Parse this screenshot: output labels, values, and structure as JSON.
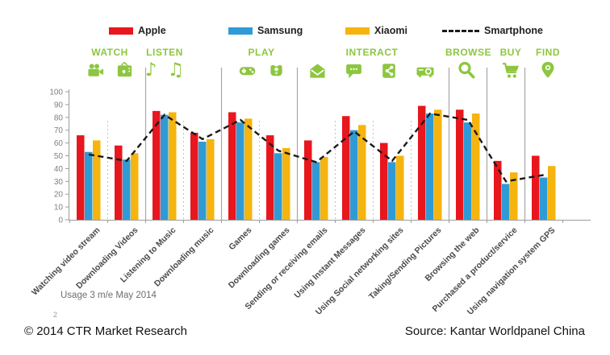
{
  "colors": {
    "apple_red": "#e8161d",
    "samsung_blue": "#2f9bd6",
    "xiaomi_yellow": "#f6b40e",
    "smartphone_line": "#1a1a1a",
    "category_green": "#8dc63f",
    "axis_gray": "#9b9b9b",
    "tick_label_gray": "#7f7f7f"
  },
  "chart_data": {
    "type": "bar",
    "title": "",
    "xlabel": "",
    "ylabel": "",
    "ylim": [
      0,
      100
    ],
    "ytick_step": 10,
    "grid": false,
    "legend_position": "top",
    "line_style": "dashed",
    "categories": [
      "Watching video stream",
      "Downloading Videos",
      "Listening to Music",
      "Downloading music",
      "Games",
      "Downloading games",
      "Sending or receiving emails",
      "Using Instant Messages",
      "Using Social networking sites",
      "Taking/Sending Pictures",
      "Browsing the web",
      "Purchased a product/service",
      "Using navigation system GPS"
    ],
    "series": [
      {
        "name": "Apple",
        "color": "#e8161d",
        "values": [
          66,
          58,
          85,
          68,
          84,
          66,
          62,
          81,
          60,
          89,
          86,
          46,
          50
        ]
      },
      {
        "name": "Samsung",
        "color": "#2f9bd6",
        "values": [
          53,
          47,
          82,
          61,
          76,
          52,
          45,
          70,
          45,
          83,
          76,
          28,
          33
        ]
      },
      {
        "name": "Xiaomi",
        "color": "#f6b40e",
        "values": [
          62,
          52,
          84,
          63,
          79,
          56,
          49,
          74,
          50,
          86,
          83,
          37,
          42
        ]
      }
    ],
    "line": {
      "name": "Smartphone",
      "color": "#1a1a1a",
      "style": "dashed",
      "values": [
        51,
        46,
        82,
        63,
        78,
        54,
        45,
        69,
        46,
        83,
        78,
        30,
        35
      ]
    },
    "category_groups": [
      {
        "label": "WATCH",
        "icons": [
          "video-camera-icon",
          "tv-icon"
        ],
        "span": [
          0,
          1
        ]
      },
      {
        "label": "LISTEN",
        "icons": [
          "music-note-icon",
          "music-notes-icon"
        ],
        "span": [
          2,
          3
        ]
      },
      {
        "label": "PLAY",
        "icons": [
          "gamepad-icon",
          "gamepad-alt-icon"
        ],
        "span": [
          4,
          5
        ]
      },
      {
        "label": "INTERACT",
        "icons": [
          "envelope-icon",
          "chat-icon",
          "share-icon",
          "projector-icon"
        ],
        "span": [
          6,
          9
        ]
      },
      {
        "label": "BROWSE",
        "icons": [
          "magnifier-icon"
        ],
        "span": [
          10,
          10
        ]
      },
      {
        "label": "BUY",
        "icons": [
          "cart-icon"
        ],
        "span": [
          11,
          11
        ]
      },
      {
        "label": "FIND",
        "icons": [
          "location-pin-icon"
        ],
        "span": [
          12,
          12
        ]
      }
    ]
  },
  "footnote": {
    "usage_note": "Usage 3 m/e May 2014",
    "page_number": "2"
  },
  "footer": {
    "left": "© 2014 CTR Market Research",
    "right": "Source: Kantar Worldpanel China"
  }
}
